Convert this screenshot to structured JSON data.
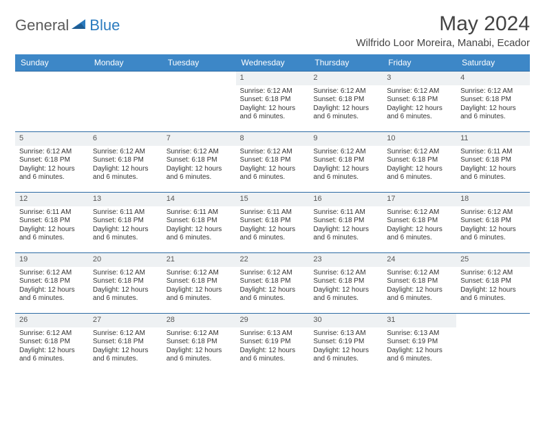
{
  "logo": {
    "text1": "General",
    "text2": "Blue"
  },
  "title": "May 2024",
  "location": "Wilfrido Loor Moreira, Manabi, Ecador",
  "colors": {
    "header_bg": "#3d87c7",
    "header_text": "#ffffff",
    "row_border": "#2b6aa3",
    "daynum_bg": "#eef1f3",
    "logo_gray": "#5a5a5a",
    "logo_blue": "#2b7bbf"
  },
  "weekdays": [
    "Sunday",
    "Monday",
    "Tuesday",
    "Wednesday",
    "Thursday",
    "Friday",
    "Saturday"
  ],
  "weeks": [
    [
      {
        "num": "",
        "empty": true
      },
      {
        "num": "",
        "empty": true
      },
      {
        "num": "",
        "empty": true
      },
      {
        "num": "1",
        "sunrise": "Sunrise: 6:12 AM",
        "sunset": "Sunset: 6:18 PM",
        "daylight": "Daylight: 12 hours and 6 minutes."
      },
      {
        "num": "2",
        "sunrise": "Sunrise: 6:12 AM",
        "sunset": "Sunset: 6:18 PM",
        "daylight": "Daylight: 12 hours and 6 minutes."
      },
      {
        "num": "3",
        "sunrise": "Sunrise: 6:12 AM",
        "sunset": "Sunset: 6:18 PM",
        "daylight": "Daylight: 12 hours and 6 minutes."
      },
      {
        "num": "4",
        "sunrise": "Sunrise: 6:12 AM",
        "sunset": "Sunset: 6:18 PM",
        "daylight": "Daylight: 12 hours and 6 minutes."
      }
    ],
    [
      {
        "num": "5",
        "sunrise": "Sunrise: 6:12 AM",
        "sunset": "Sunset: 6:18 PM",
        "daylight": "Daylight: 12 hours and 6 minutes."
      },
      {
        "num": "6",
        "sunrise": "Sunrise: 6:12 AM",
        "sunset": "Sunset: 6:18 PM",
        "daylight": "Daylight: 12 hours and 6 minutes."
      },
      {
        "num": "7",
        "sunrise": "Sunrise: 6:12 AM",
        "sunset": "Sunset: 6:18 PM",
        "daylight": "Daylight: 12 hours and 6 minutes."
      },
      {
        "num": "8",
        "sunrise": "Sunrise: 6:12 AM",
        "sunset": "Sunset: 6:18 PM",
        "daylight": "Daylight: 12 hours and 6 minutes."
      },
      {
        "num": "9",
        "sunrise": "Sunrise: 6:12 AM",
        "sunset": "Sunset: 6:18 PM",
        "daylight": "Daylight: 12 hours and 6 minutes."
      },
      {
        "num": "10",
        "sunrise": "Sunrise: 6:12 AM",
        "sunset": "Sunset: 6:18 PM",
        "daylight": "Daylight: 12 hours and 6 minutes."
      },
      {
        "num": "11",
        "sunrise": "Sunrise: 6:11 AM",
        "sunset": "Sunset: 6:18 PM",
        "daylight": "Daylight: 12 hours and 6 minutes."
      }
    ],
    [
      {
        "num": "12",
        "sunrise": "Sunrise: 6:11 AM",
        "sunset": "Sunset: 6:18 PM",
        "daylight": "Daylight: 12 hours and 6 minutes."
      },
      {
        "num": "13",
        "sunrise": "Sunrise: 6:11 AM",
        "sunset": "Sunset: 6:18 PM",
        "daylight": "Daylight: 12 hours and 6 minutes."
      },
      {
        "num": "14",
        "sunrise": "Sunrise: 6:11 AM",
        "sunset": "Sunset: 6:18 PM",
        "daylight": "Daylight: 12 hours and 6 minutes."
      },
      {
        "num": "15",
        "sunrise": "Sunrise: 6:11 AM",
        "sunset": "Sunset: 6:18 PM",
        "daylight": "Daylight: 12 hours and 6 minutes."
      },
      {
        "num": "16",
        "sunrise": "Sunrise: 6:11 AM",
        "sunset": "Sunset: 6:18 PM",
        "daylight": "Daylight: 12 hours and 6 minutes."
      },
      {
        "num": "17",
        "sunrise": "Sunrise: 6:12 AM",
        "sunset": "Sunset: 6:18 PM",
        "daylight": "Daylight: 12 hours and 6 minutes."
      },
      {
        "num": "18",
        "sunrise": "Sunrise: 6:12 AM",
        "sunset": "Sunset: 6:18 PM",
        "daylight": "Daylight: 12 hours and 6 minutes."
      }
    ],
    [
      {
        "num": "19",
        "sunrise": "Sunrise: 6:12 AM",
        "sunset": "Sunset: 6:18 PM",
        "daylight": "Daylight: 12 hours and 6 minutes."
      },
      {
        "num": "20",
        "sunrise": "Sunrise: 6:12 AM",
        "sunset": "Sunset: 6:18 PM",
        "daylight": "Daylight: 12 hours and 6 minutes."
      },
      {
        "num": "21",
        "sunrise": "Sunrise: 6:12 AM",
        "sunset": "Sunset: 6:18 PM",
        "daylight": "Daylight: 12 hours and 6 minutes."
      },
      {
        "num": "22",
        "sunrise": "Sunrise: 6:12 AM",
        "sunset": "Sunset: 6:18 PM",
        "daylight": "Daylight: 12 hours and 6 minutes."
      },
      {
        "num": "23",
        "sunrise": "Sunrise: 6:12 AM",
        "sunset": "Sunset: 6:18 PM",
        "daylight": "Daylight: 12 hours and 6 minutes."
      },
      {
        "num": "24",
        "sunrise": "Sunrise: 6:12 AM",
        "sunset": "Sunset: 6:18 PM",
        "daylight": "Daylight: 12 hours and 6 minutes."
      },
      {
        "num": "25",
        "sunrise": "Sunrise: 6:12 AM",
        "sunset": "Sunset: 6:18 PM",
        "daylight": "Daylight: 12 hours and 6 minutes."
      }
    ],
    [
      {
        "num": "26",
        "sunrise": "Sunrise: 6:12 AM",
        "sunset": "Sunset: 6:18 PM",
        "daylight": "Daylight: 12 hours and 6 minutes."
      },
      {
        "num": "27",
        "sunrise": "Sunrise: 6:12 AM",
        "sunset": "Sunset: 6:18 PM",
        "daylight": "Daylight: 12 hours and 6 minutes."
      },
      {
        "num": "28",
        "sunrise": "Sunrise: 6:12 AM",
        "sunset": "Sunset: 6:18 PM",
        "daylight": "Daylight: 12 hours and 6 minutes."
      },
      {
        "num": "29",
        "sunrise": "Sunrise: 6:13 AM",
        "sunset": "Sunset: 6:19 PM",
        "daylight": "Daylight: 12 hours and 6 minutes."
      },
      {
        "num": "30",
        "sunrise": "Sunrise: 6:13 AM",
        "sunset": "Sunset: 6:19 PM",
        "daylight": "Daylight: 12 hours and 6 minutes."
      },
      {
        "num": "31",
        "sunrise": "Sunrise: 6:13 AM",
        "sunset": "Sunset: 6:19 PM",
        "daylight": "Daylight: 12 hours and 6 minutes."
      },
      {
        "num": "",
        "empty": true
      }
    ]
  ]
}
